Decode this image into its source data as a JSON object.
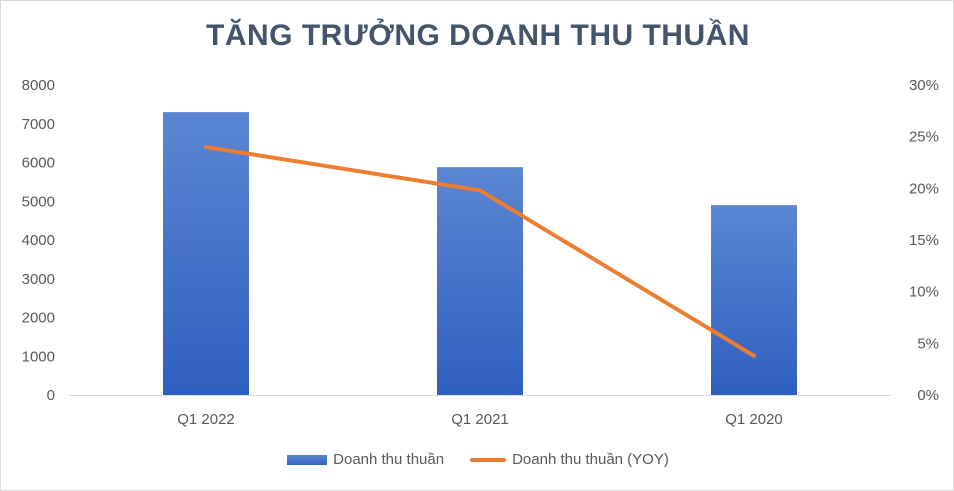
{
  "chart_data": {
    "type": "bar",
    "title": "TĂNG TRƯỞNG DOANH THU THUẦN",
    "categories": [
      "Q1 2022",
      "Q1 2021",
      "Q1 2020"
    ],
    "series": [
      {
        "name": "Doanh thu thuần",
        "type": "bar",
        "axis": "left",
        "color": "#4472c4",
        "values": [
          7300,
          5880,
          4900
        ]
      },
      {
        "name": "Doanh thu thuần (YOY)",
        "type": "line",
        "axis": "right",
        "color": "#ed7d31",
        "values": [
          24.0,
          19.8,
          3.8
        ]
      }
    ],
    "y_left": {
      "min": 0,
      "max": 8000,
      "ticks": [
        "0",
        "1000",
        "2000",
        "3000",
        "4000",
        "5000",
        "6000",
        "7000",
        "8000"
      ]
    },
    "y_right": {
      "min": 0,
      "max": 30,
      "ticks": [
        "0%",
        "5%",
        "10%",
        "15%",
        "20%",
        "25%",
        "30%"
      ]
    },
    "grid": false,
    "legend": "bottom"
  }
}
